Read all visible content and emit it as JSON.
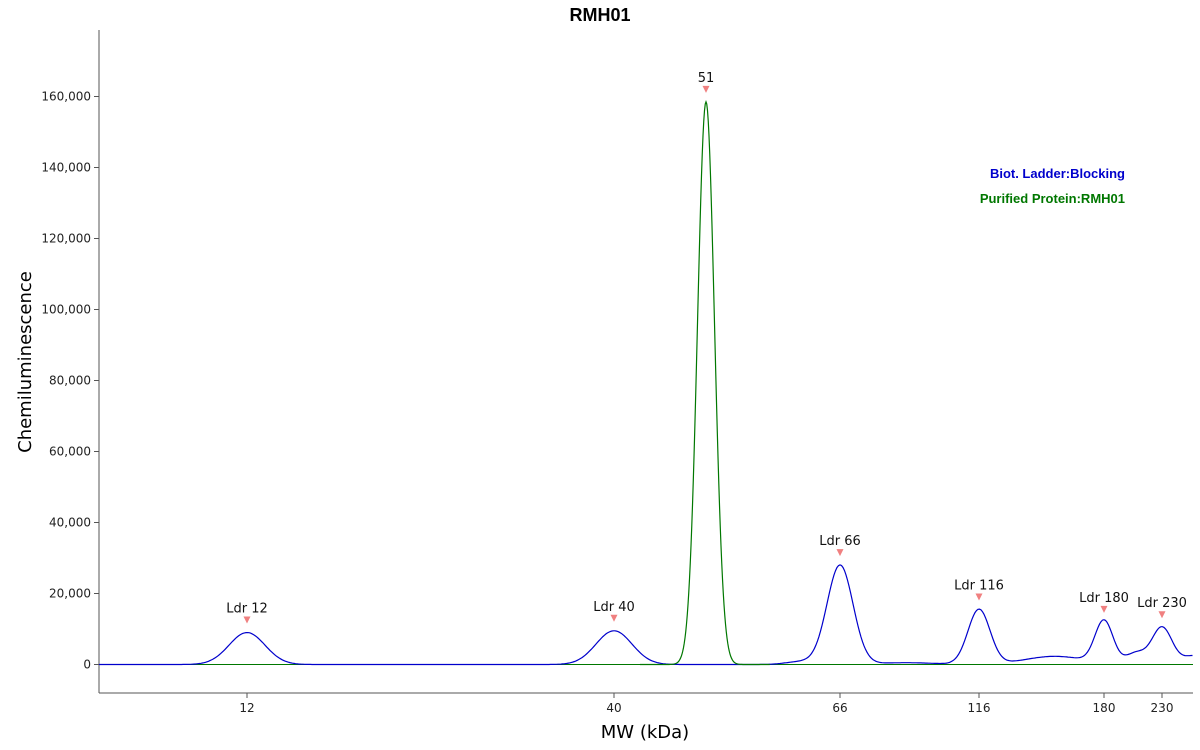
{
  "chart_data": {
    "type": "line",
    "title": "RMH01",
    "xlabel": "MW (kDa)",
    "ylabel": "Chemiluminescence",
    "x_ticks": [
      "12",
      "40",
      "66",
      "116",
      "180",
      "230"
    ],
    "x_tick_values": [
      12,
      40,
      66,
      116,
      180,
      230
    ],
    "y_ticks": [
      "0",
      "20,000",
      "40,000",
      "60,000",
      "80,000",
      "100,000",
      "120,000",
      "140,000",
      "160,000"
    ],
    "y_tick_values": [
      0,
      20000,
      40000,
      60000,
      80000,
      100000,
      120000,
      140000,
      160000
    ],
    "ylim": [
      -8000,
      178000
    ],
    "legend_position": "top-right",
    "series": [
      {
        "name": "Biot. Ladder:Blocking",
        "color": "#0000cc",
        "peaks": [
          {
            "x": 12,
            "y": 9000
          },
          {
            "x": 40,
            "y": 9500
          },
          {
            "x": 66,
            "y": 28000
          },
          {
            "x": 116,
            "y": 15500
          },
          {
            "x": 180,
            "y": 12000
          },
          {
            "x": 230,
            "y": 10500
          }
        ]
      },
      {
        "name": "Purified Protein:RMH01",
        "color": "#007700",
        "peaks": [
          {
            "x": 51,
            "y": 158500
          }
        ]
      }
    ],
    "peak_labels": [
      {
        "text": "Ldr 12",
        "x": 12,
        "y": 9000
      },
      {
        "text": "Ldr 40",
        "x": 40,
        "y": 9500
      },
      {
        "text": "51",
        "x": 51,
        "y": 158500
      },
      {
        "text": "Ldr 66",
        "x": 66,
        "y": 28000
      },
      {
        "text": "Ldr 116",
        "x": 116,
        "y": 15500
      },
      {
        "text": "Ldr 180",
        "x": 180,
        "y": 12000
      },
      {
        "text": "Ldr 230",
        "x": 230,
        "y": 10500
      }
    ],
    "marker_color": "#f08080"
  }
}
